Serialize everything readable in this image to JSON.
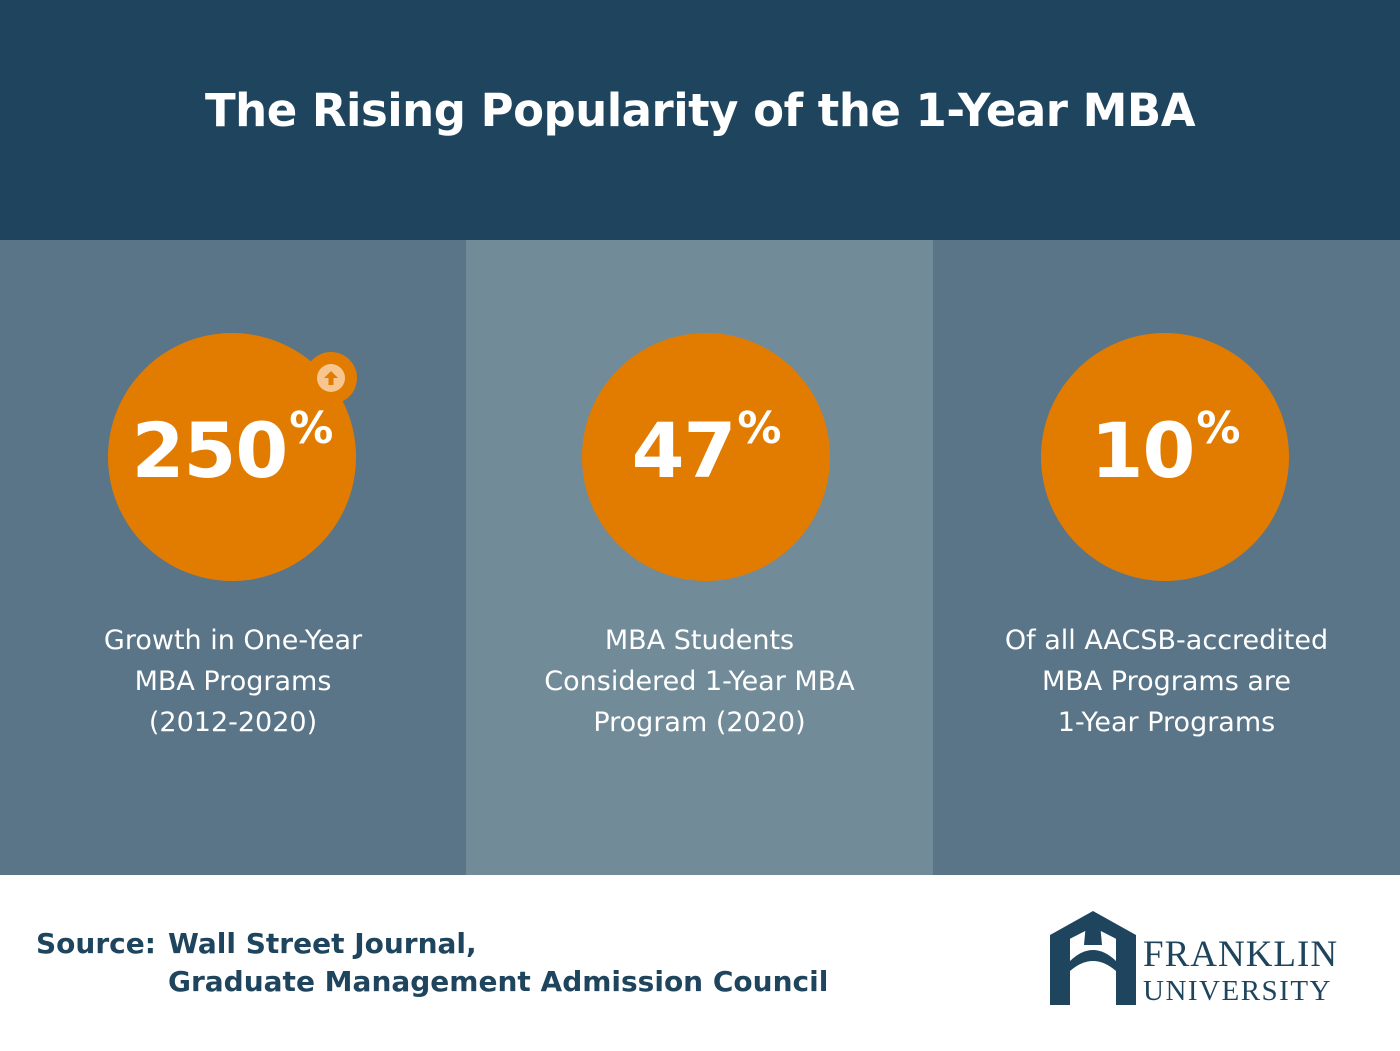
{
  "header": {
    "title": "The Rising Popularity of the 1-Year MBA"
  },
  "stats": [
    {
      "number": "250",
      "unit": "%",
      "lines": [
        "Growth in One-Year",
        "MBA Programs",
        "(2012-2020)"
      ],
      "badge_icon": "arrow-up-icon"
    },
    {
      "number": "47",
      "unit": "%",
      "lines": [
        "MBA Students",
        "Considered 1-Year MBA",
        "Program (2020)"
      ]
    },
    {
      "number": "10",
      "unit": "%",
      "lines": [
        "Of all AACSB-accredited",
        "MBA Programs are",
        "1-Year Programs"
      ]
    }
  ],
  "footer": {
    "source_label": "Source:",
    "sources": [
      "Wall Street Journal,",
      "Graduate Management Admission Council"
    ],
    "logo_text_line1": "FRANKLIN",
    "logo_text_line2": "UNIVERSITY"
  },
  "colors": {
    "header_bg": "#1f455e",
    "panel_dark": "#5a7587",
    "panel_light": "#728b99",
    "accent_orange": "#e17c00",
    "text_navy": "#1f455e"
  }
}
